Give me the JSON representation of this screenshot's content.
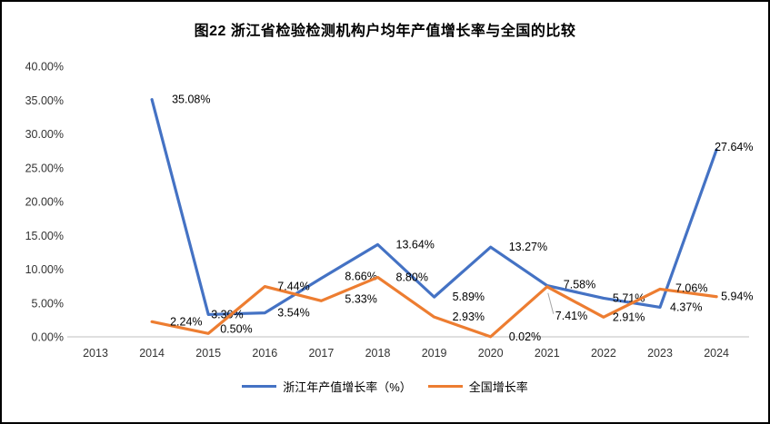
{
  "chart_data": {
    "type": "line",
    "title": "图22 浙江省检验检测机构户均年产值增长率与全国的比较",
    "x": [
      2013,
      2014,
      2015,
      2016,
      2017,
      2018,
      2019,
      2020,
      2021,
      2022,
      2023,
      2024
    ],
    "series": [
      {
        "name": "浙江年产值增长率（%）",
        "color": "#4472C4",
        "values": [
          null,
          35.08,
          3.3,
          3.54,
          8.66,
          13.64,
          5.89,
          13.27,
          7.58,
          5.71,
          4.37,
          27.64
        ],
        "labels": [
          "",
          "35.08%",
          "3.30%",
          "3.54%",
          "8.66%",
          "13.64%",
          "5.89%",
          "13.27%",
          "7.58%",
          "5.71%",
          "4.37%",
          "27.64%"
        ]
      },
      {
        "name": "全国增长率",
        "color": "#ED7D31",
        "values": [
          null,
          2.24,
          0.5,
          7.44,
          5.33,
          8.8,
          2.93,
          0.02,
          7.41,
          2.91,
          7.06,
          5.94
        ],
        "labels": [
          "",
          "2.24%",
          "0.50%",
          "7.44%",
          "5.33%",
          "8.80%",
          "2.93%",
          "0.02%",
          "7.41%",
          "2.91%",
          "7.06%",
          "5.94%"
        ]
      }
    ],
    "ylim": [
      0,
      40
    ],
    "ytick_step": 5,
    "ytick_labels": [
      "0.00%",
      "5.00%",
      "10.00%",
      "15.00%",
      "20.00%",
      "25.00%",
      "30.00%",
      "35.00%",
      "40.00%"
    ],
    "xtick_labels": [
      "2013",
      "2014",
      "2015",
      "2016",
      "2017",
      "2018",
      "2019",
      "2020",
      "2021",
      "2022",
      "2023",
      "2024"
    ],
    "grid": false,
    "legend_position": "bottom",
    "axis_line_color": "#BFBFBF",
    "tick_label_color": "#333333",
    "data_label_color": "#000000",
    "leader_line_color": "#A6A6A6"
  }
}
